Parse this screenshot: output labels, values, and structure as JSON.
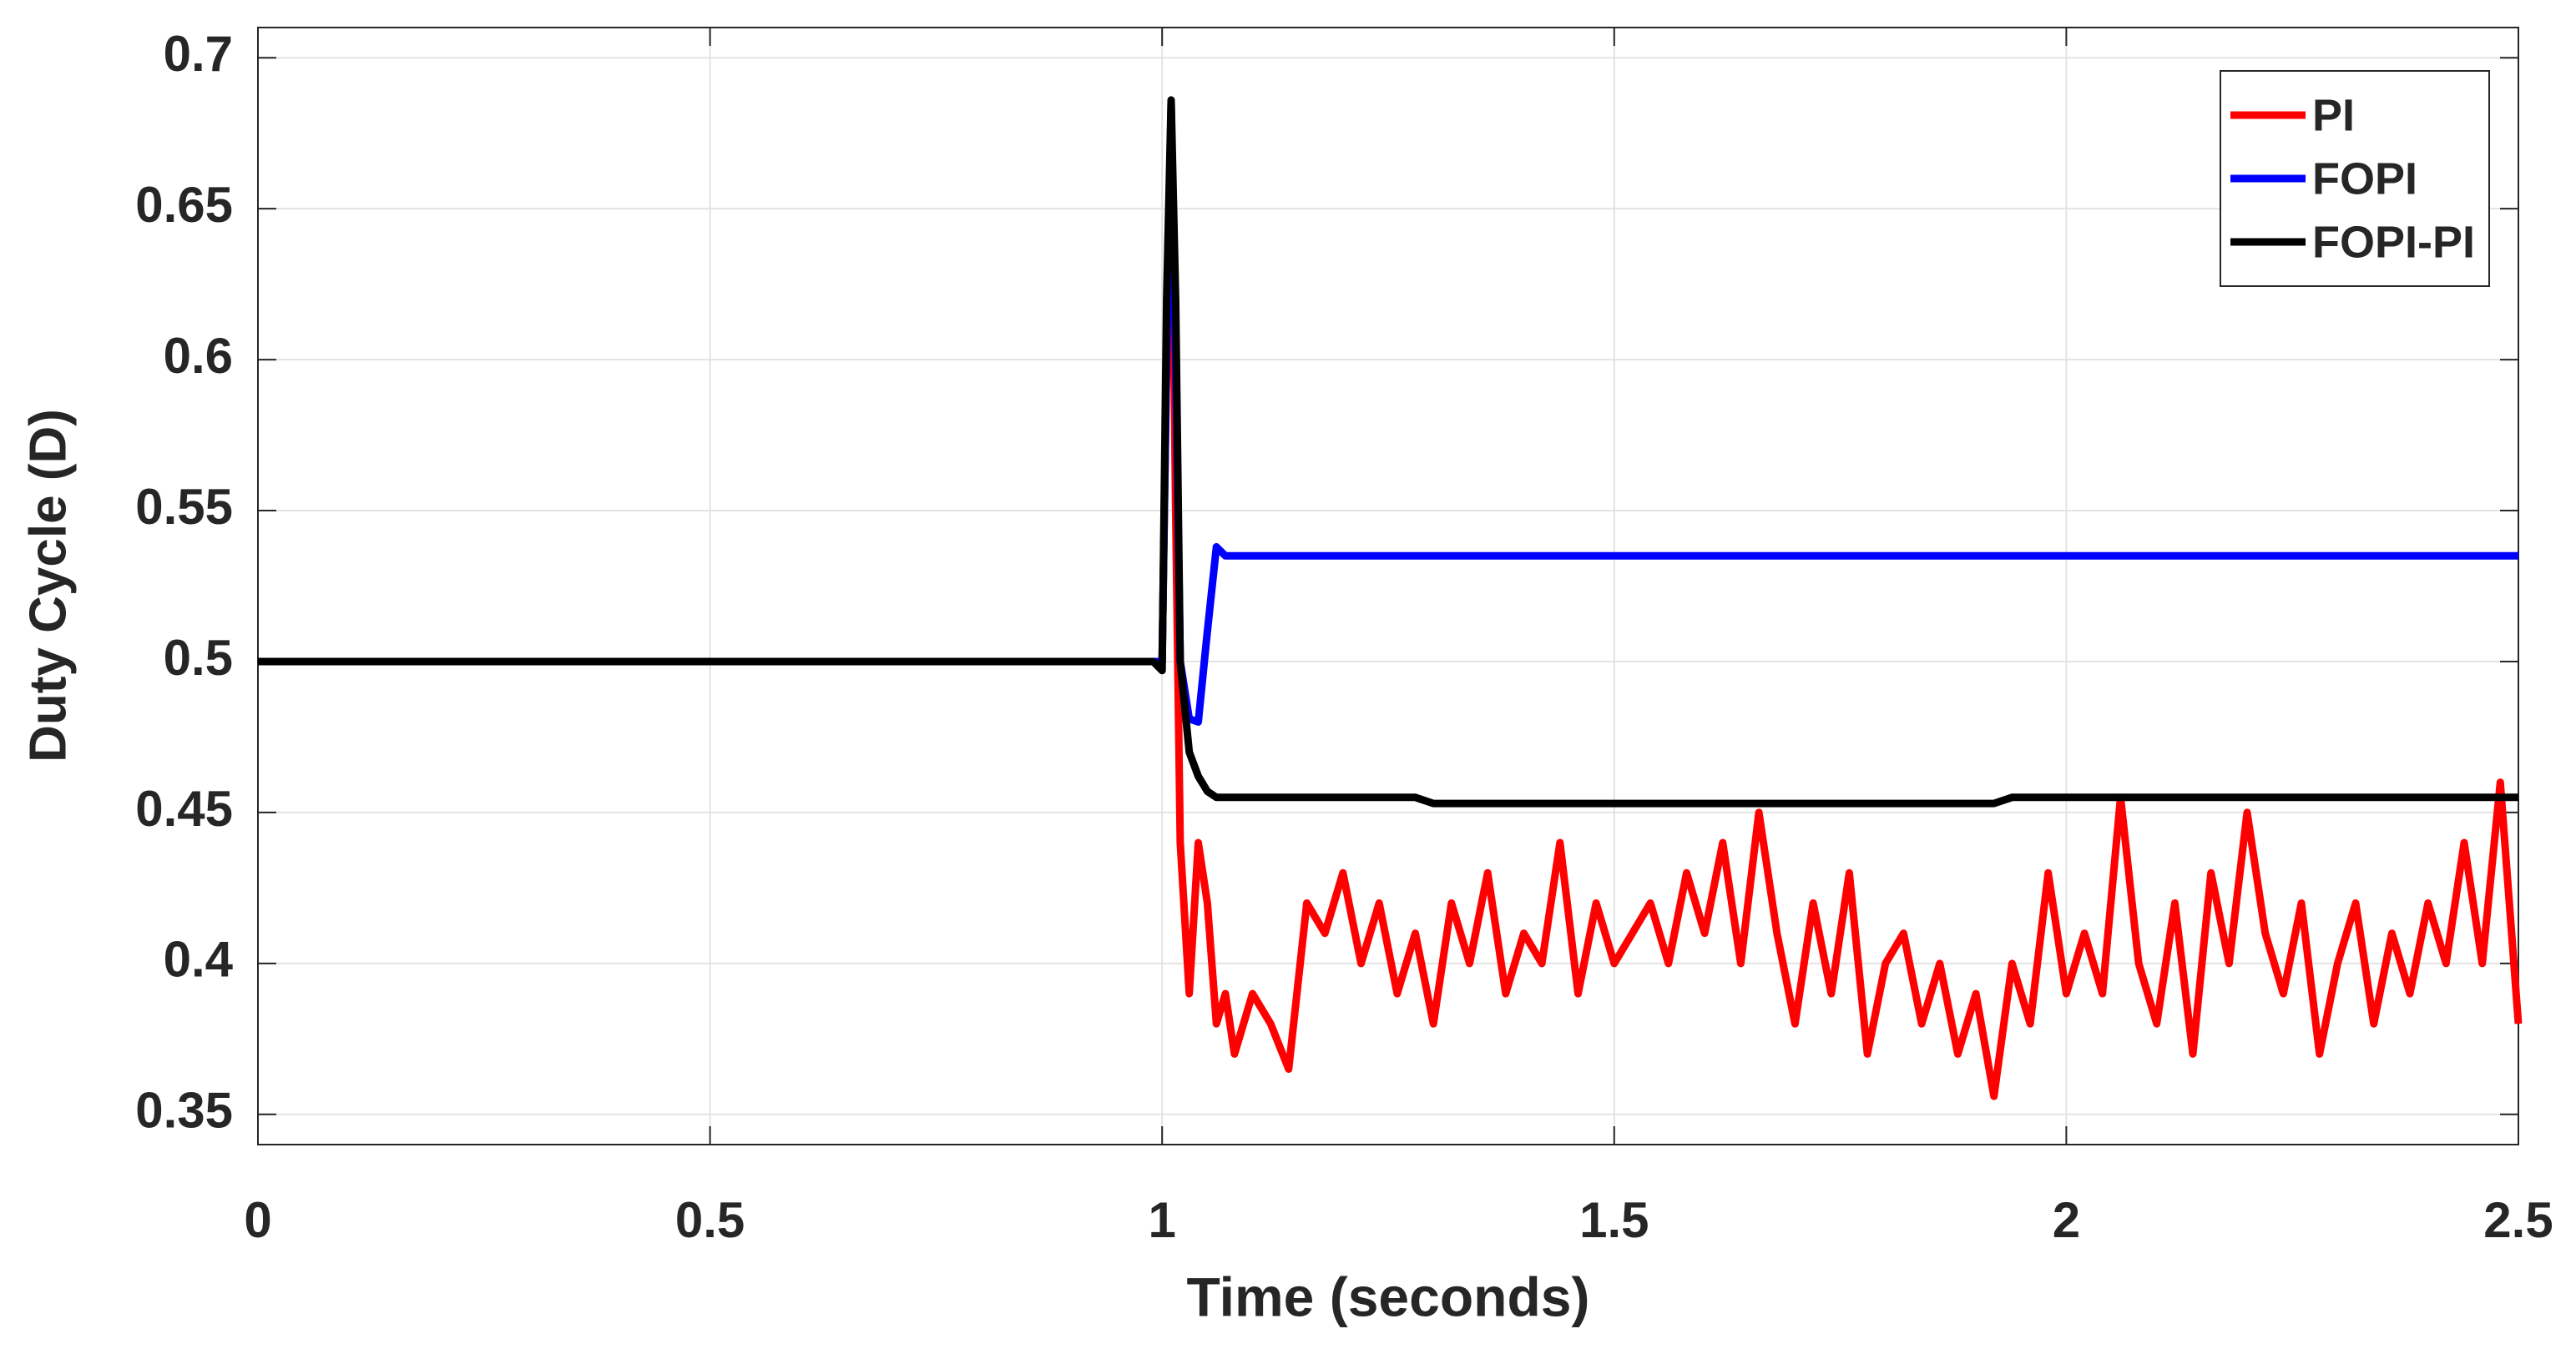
{
  "chart_data": {
    "type": "line",
    "xlabel": "Time (seconds)",
    "ylabel": "Duty Cycle (D)",
    "x": [
      0,
      0.99,
      1.0,
      1.005,
      1.01,
      1.015,
      1.02,
      1.03,
      1.04,
      1.05,
      1.06,
      1.07,
      1.08,
      1.1,
      1.12,
      1.14,
      1.16,
      1.18,
      1.2,
      1.22,
      1.24,
      1.26,
      1.28,
      1.3,
      1.32,
      1.34,
      1.36,
      1.38,
      1.4,
      1.42,
      1.44,
      1.46,
      1.48,
      1.5,
      1.52,
      1.54,
      1.56,
      1.58,
      1.6,
      1.62,
      1.64,
      1.66,
      1.68,
      1.7,
      1.72,
      1.74,
      1.76,
      1.78,
      1.8,
      1.82,
      1.84,
      1.86,
      1.88,
      1.9,
      1.92,
      1.94,
      1.96,
      1.98,
      2.0,
      2.02,
      2.04,
      2.06,
      2.08,
      2.1,
      2.12,
      2.14,
      2.16,
      2.18,
      2.2,
      2.22,
      2.24,
      2.26,
      2.28,
      2.3,
      2.32,
      2.34,
      2.36,
      2.38,
      2.4,
      2.42,
      2.44,
      2.46,
      2.48,
      2.5
    ],
    "series": [
      {
        "name": "PI",
        "color": "#ff0000",
        "values": [
          0.5,
          0.5,
          0.5,
          0.6,
          0.68,
          0.55,
          0.44,
          0.39,
          0.44,
          0.42,
          0.38,
          0.39,
          0.37,
          0.39,
          0.38,
          0.365,
          0.42,
          0.41,
          0.43,
          0.4,
          0.42,
          0.39,
          0.41,
          0.38,
          0.42,
          0.4,
          0.43,
          0.39,
          0.41,
          0.4,
          0.44,
          0.39,
          0.42,
          0.4,
          0.41,
          0.42,
          0.4,
          0.43,
          0.41,
          0.44,
          0.4,
          0.45,
          0.41,
          0.38,
          0.42,
          0.39,
          0.43,
          0.37,
          0.4,
          0.41,
          0.38,
          0.4,
          0.37,
          0.39,
          0.356,
          0.4,
          0.38,
          0.43,
          0.39,
          0.41,
          0.39,
          0.455,
          0.4,
          0.38,
          0.42,
          0.37,
          0.43,
          0.4,
          0.45,
          0.41,
          0.39,
          0.42,
          0.37,
          0.4,
          0.42,
          0.38,
          0.41,
          0.39,
          0.42,
          0.4,
          0.44,
          0.4,
          0.46,
          0.38
        ]
      },
      {
        "name": "FOPI",
        "color": "#0000ff",
        "values": [
          0.5,
          0.5,
          0.5,
          0.6,
          0.685,
          0.6,
          0.5,
          0.481,
          0.48,
          0.51,
          0.538,
          0.535,
          0.535,
          0.535,
          0.535,
          0.535,
          0.535,
          0.535,
          0.535,
          0.535,
          0.535,
          0.535,
          0.535,
          0.535,
          0.535,
          0.535,
          0.535,
          0.535,
          0.535,
          0.535,
          0.535,
          0.535,
          0.535,
          0.535,
          0.535,
          0.535,
          0.535,
          0.535,
          0.535,
          0.535,
          0.535,
          0.535,
          0.535,
          0.535,
          0.535,
          0.535,
          0.535,
          0.535,
          0.535,
          0.535,
          0.535,
          0.535,
          0.535,
          0.535,
          0.535,
          0.535,
          0.535,
          0.535,
          0.535,
          0.535,
          0.535,
          0.535,
          0.535,
          0.535,
          0.535,
          0.535,
          0.535,
          0.535,
          0.535,
          0.535,
          0.535,
          0.535,
          0.535,
          0.535,
          0.535,
          0.535,
          0.535,
          0.535,
          0.535,
          0.535,
          0.535,
          0.535,
          0.535,
          0.535
        ]
      },
      {
        "name": "FOPI-PI",
        "color": "#000000",
        "values": [
          0.5,
          0.5,
          0.497,
          0.62,
          0.686,
          0.62,
          0.5,
          0.47,
          0.462,
          0.457,
          0.455,
          0.455,
          0.455,
          0.455,
          0.455,
          0.455,
          0.455,
          0.455,
          0.455,
          0.455,
          0.455,
          0.455,
          0.455,
          0.453,
          0.453,
          0.453,
          0.453,
          0.453,
          0.453,
          0.453,
          0.453,
          0.453,
          0.453,
          0.453,
          0.453,
          0.453,
          0.453,
          0.453,
          0.453,
          0.453,
          0.453,
          0.453,
          0.453,
          0.453,
          0.453,
          0.453,
          0.453,
          0.453,
          0.453,
          0.453,
          0.453,
          0.453,
          0.453,
          0.453,
          0.453,
          0.455,
          0.455,
          0.455,
          0.455,
          0.455,
          0.455,
          0.455,
          0.455,
          0.455,
          0.455,
          0.455,
          0.455,
          0.455,
          0.455,
          0.455,
          0.455,
          0.455,
          0.455,
          0.455,
          0.455,
          0.455,
          0.455,
          0.455,
          0.455,
          0.455,
          0.455,
          0.455,
          0.455,
          0.455
        ]
      }
    ],
    "xlim": [
      0,
      2.5
    ],
    "xticks": [
      0,
      0.5,
      1,
      1.5,
      2,
      2.5
    ],
    "ylim": [
      0.34,
      0.71
    ],
    "yticks": [
      0.35,
      0.4,
      0.45,
      0.5,
      0.55,
      0.6,
      0.65,
      0.7
    ],
    "grid": true,
    "legend": "upper right"
  }
}
